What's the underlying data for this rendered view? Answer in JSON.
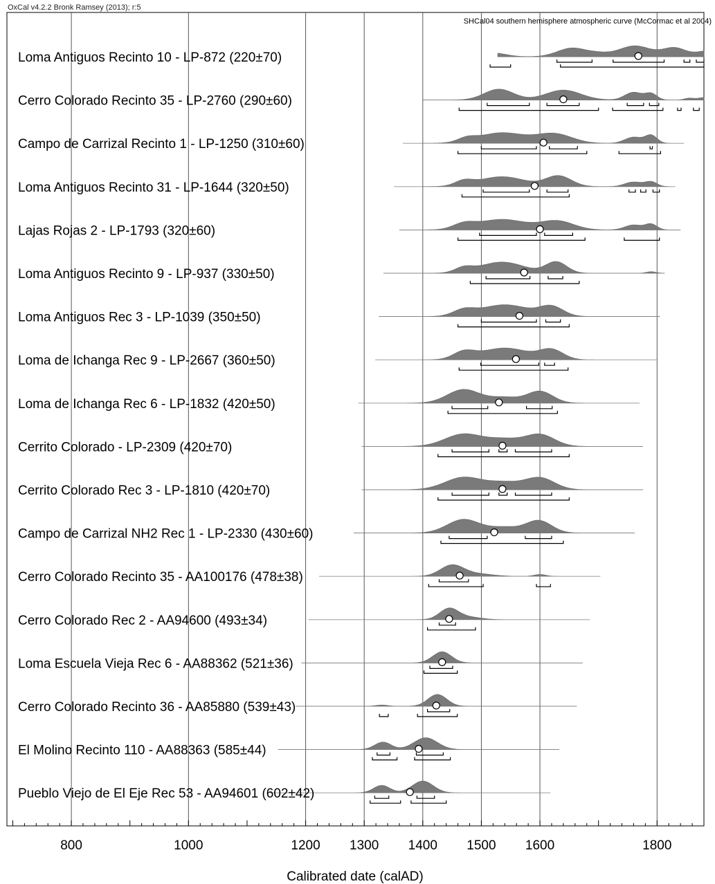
{
  "chart_data": {
    "type": "ridge",
    "version_text": "OxCal v4.2.2 Bronk Ramsey (2013); r:5",
    "curve_text": "SHCal04 southern hemisphere atmospheric curve (McCormac et al 2004)",
    "xlabel": "Calibrated date (calAD)",
    "xlim": [
      690,
      1880
    ],
    "x_ticks": [
      800,
      1000,
      1200,
      1300,
      1400,
      1500,
      1600,
      1800
    ],
    "grid_x": [
      800,
      1000,
      1200,
      1300,
      1400,
      1500,
      1600,
      1800
    ],
    "colors": {
      "fill": "#7a7a7a",
      "line": "#000000",
      "grid": "#555555"
    },
    "samples": [
      {
        "label": "Loma Antiguos Recinto 10 - LP-872 (220±70)",
        "median": 1768,
        "peaks": [
          [
            1520,
            22,
            12
          ],
          [
            1655,
            25,
            28
          ],
          [
            1700,
            18,
            8
          ],
          [
            1762,
            28,
            35
          ],
          [
            1830,
            20,
            28
          ],
          [
            1890,
            20,
            20
          ]
        ],
        "range68": [
          [
            1629,
            1689
          ],
          [
            1725,
            1812
          ],
          [
            1846,
            1856
          ],
          [
            1867,
            1890
          ]
        ],
        "range95": [
          [
            1515,
            1550
          ],
          [
            1635,
            1890
          ]
        ]
      },
      {
        "label": "Cerro Colorado Recinto 35 - LP-2760 (290±60)",
        "median": 1640,
        "peaks": [
          [
            1530,
            25,
            35
          ],
          [
            1640,
            30,
            32
          ],
          [
            1760,
            15,
            25
          ],
          [
            1790,
            10,
            20
          ],
          [
            1855,
            8,
            6
          ],
          [
            1880,
            10,
            8
          ]
        ],
        "range68": [
          [
            1510,
            1582
          ],
          [
            1612,
            1667
          ],
          [
            1749,
            1777
          ],
          [
            1787,
            1803
          ]
        ],
        "range95": [
          [
            1462,
            1700
          ],
          [
            1724,
            1810
          ],
          [
            1835,
            1841
          ],
          [
            1862,
            1872
          ]
        ]
      },
      {
        "label": "Campo de Carrizal Recinto 1 - LP-1250 (310±60)",
        "median": 1606,
        "peaks": [
          [
            1475,
            15,
            12
          ],
          [
            1535,
            40,
            34
          ],
          [
            1625,
            30,
            30
          ],
          [
            1760,
            15,
            20
          ],
          [
            1790,
            10,
            25
          ]
        ],
        "range68": [
          [
            1500,
            1594
          ],
          [
            1616,
            1664
          ],
          [
            1788,
            1792
          ]
        ],
        "range95": [
          [
            1460,
            1680
          ],
          [
            1735,
            1806
          ]
        ]
      },
      {
        "label": "Loma Antiguos Recinto 31 - LP-1644 (320±50)",
        "median": 1591,
        "peaks": [
          [
            1470,
            15,
            15
          ],
          [
            1535,
            40,
            32
          ],
          [
            1632,
            22,
            34
          ],
          [
            1760,
            15,
            15
          ],
          [
            1790,
            10,
            15
          ]
        ],
        "range68": [
          [
            1503,
            1582
          ],
          [
            1612,
            1648
          ],
          [
            1752,
            1763
          ],
          [
            1772,
            1781
          ],
          [
            1793,
            1804
          ]
        ],
        "range95": [
          [
            1467,
            1650
          ]
        ]
      },
      {
        "label": "Lajas Rojas 2 - LP-1793 (320±60)",
        "median": 1600,
        "peaks": [
          [
            1470,
            18,
            16
          ],
          [
            1535,
            42,
            34
          ],
          [
            1630,
            28,
            28
          ],
          [
            1760,
            15,
            16
          ],
          [
            1790,
            10,
            18
          ]
        ],
        "range68": [
          [
            1497,
            1594
          ],
          [
            1608,
            1656
          ]
        ],
        "range95": [
          [
            1460,
            1677
          ],
          [
            1744,
            1804
          ]
        ]
      },
      {
        "label": "Loma Antiguos Recinto 9 - LP-937 (330±50)",
        "median": 1573,
        "peaks": [
          [
            1470,
            15,
            15
          ],
          [
            1535,
            38,
            36
          ],
          [
            1628,
            18,
            36
          ],
          [
            1790,
            8,
            5
          ]
        ],
        "range68": [
          [
            1508,
            1583
          ],
          [
            1614,
            1639
          ]
        ],
        "range95": [
          [
            1481,
            1667
          ]
        ]
      },
      {
        "label": "Loma Antiguos Rec 3 - LP-1039 (350±50)",
        "median": 1565,
        "peaks": [
          [
            1470,
            18,
            18
          ],
          [
            1540,
            42,
            38
          ],
          [
            1620,
            20,
            30
          ]
        ],
        "range68": [
          [
            1500,
            1594
          ],
          [
            1610,
            1635
          ]
        ],
        "range95": [
          [
            1460,
            1650
          ]
        ]
      },
      {
        "label": "Loma de Ichanga Rec 9 - LP-2667 (360±50)",
        "median": 1559,
        "peaks": [
          [
            1470,
            18,
            22
          ],
          [
            1540,
            42,
            38
          ],
          [
            1620,
            20,
            30
          ]
        ],
        "range68": [
          [
            1499,
            1598
          ],
          [
            1608,
            1625
          ]
        ],
        "range95": [
          [
            1462,
            1648
          ]
        ]
      },
      {
        "label": "Loma de Ichanga Rec 6 - LP-1832 (420±50)",
        "median": 1530,
        "peaks": [
          [
            1470,
            28,
            44
          ],
          [
            1540,
            25,
            18
          ],
          [
            1600,
            22,
            38
          ]
        ],
        "range68": [
          [
            1450,
            1511
          ],
          [
            1577,
            1621
          ]
        ],
        "range95": [
          [
            1443,
            1630
          ]
        ]
      },
      {
        "label": "Cerrito Colorado - LP-2309 (420±70)",
        "median": 1536,
        "peaks": [
          [
            1470,
            32,
            40
          ],
          [
            1540,
            28,
            22
          ],
          [
            1600,
            25,
            38
          ]
        ],
        "range68": [
          [
            1450,
            1513
          ],
          [
            1530,
            1544
          ],
          [
            1558,
            1620
          ]
        ],
        "range95": [
          [
            1426,
            1650
          ]
        ]
      },
      {
        "label": "Cerrito Colorado Rec 3 - LP-1810 (420±70)",
        "median": 1536,
        "peaks": [
          [
            1470,
            32,
            40
          ],
          [
            1540,
            28,
            22
          ],
          [
            1600,
            25,
            38
          ]
        ],
        "range68": [
          [
            1450,
            1513
          ],
          [
            1530,
            1544
          ],
          [
            1558,
            1620
          ]
        ],
        "range95": [
          [
            1426,
            1650
          ]
        ]
      },
      {
        "label": "Campo de Carrizal NH2 Rec 1 - LP-2330 (430±60)",
        "median": 1522,
        "peaks": [
          [
            1470,
            28,
            44
          ],
          [
            1540,
            25,
            18
          ],
          [
            1598,
            22,
            40
          ]
        ],
        "range68": [
          [
            1445,
            1510
          ],
          [
            1575,
            1620
          ]
        ],
        "range95": [
          [
            1431,
            1640
          ]
        ]
      },
      {
        "label": "Cerro Colorado Recinto 35 - AA100176 (478±38)",
        "median": 1463,
        "peaks": [
          [
            1450,
            20,
            36
          ],
          [
            1495,
            25,
            8
          ],
          [
            1600,
            10,
            6
          ]
        ],
        "range68": [
          [
            1428,
            1478
          ]
        ],
        "range95": [
          [
            1410,
            1503
          ],
          [
            1594,
            1618
          ]
        ]
      },
      {
        "label": "Cerro Colorado Rec 2 - AA94600 (493±34)",
        "median": 1445,
        "peaks": [
          [
            1445,
            16,
            36
          ],
          [
            1480,
            20,
            8
          ]
        ],
        "range68": [
          [
            1428,
            1456
          ]
        ],
        "range95": [
          [
            1408,
            1490
          ]
        ]
      },
      {
        "label": "Loma Escuela Vieja Rec 6 - AA88362 (521±36)",
        "median": 1433,
        "peaks": [
          [
            1433,
            16,
            36
          ]
        ],
        "range68": [
          [
            1412,
            1451
          ]
        ],
        "range95": [
          [
            1402,
            1459
          ]
        ]
      },
      {
        "label": "Cerro Colorado Recinto 36 - AA85880 (539±43)",
        "median": 1423,
        "peaks": [
          [
            1425,
            16,
            38
          ],
          [
            1330,
            10,
            4
          ]
        ],
        "range68": [
          [
            1408,
            1446
          ]
        ],
        "range95": [
          [
            1326,
            1341
          ],
          [
            1391,
            1459
          ]
        ]
      },
      {
        "label": "El Molino Recinto 110 - AA88363 (585±44)",
        "median": 1393,
        "peaks": [
          [
            1332,
            14,
            24
          ],
          [
            1405,
            20,
            38
          ]
        ],
        "range68": [
          [
            1322,
            1344
          ],
          [
            1389,
            1435
          ]
        ],
        "range95": [
          [
            1314,
            1356
          ],
          [
            1386,
            1447
          ]
        ]
      },
      {
        "label": "Pueblo Viejo de El Eje Rec 53 - AA94601 (602±42)",
        "median": 1378,
        "peaks": [
          [
            1330,
            14,
            24
          ],
          [
            1400,
            18,
            38
          ]
        ],
        "range68": [
          [
            1318,
            1342
          ],
          [
            1390,
            1420
          ]
        ],
        "range95": [
          [
            1310,
            1362
          ],
          [
            1380,
            1440
          ]
        ]
      }
    ]
  }
}
